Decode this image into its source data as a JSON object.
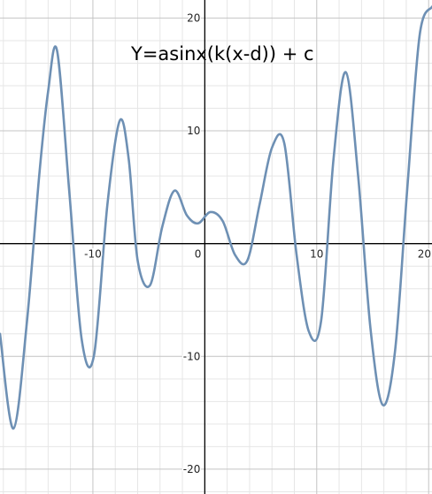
{
  "chart_data": {
    "type": "line",
    "annotation": "Y=asinx(k(x-d)) + c",
    "xlim": [
      -18.3,
      20.3
    ],
    "ylim": [
      -22.2,
      21.6
    ],
    "x_ticks": [
      -10,
      0,
      10,
      20
    ],
    "y_ticks": [
      -20,
      -10,
      0,
      10,
      20
    ],
    "x_tick_labels": [
      "-10",
      "0",
      "10",
      "20"
    ],
    "y_tick_labels": [
      "-20",
      "-10",
      "",
      "10",
      "20"
    ],
    "grid": true,
    "minor_grid_step": 2,
    "major_grid_step": 10,
    "line_color": "#6e90b4",
    "series": [
      {
        "x": [
          -18.3,
          -17.1,
          -15.9,
          -14.8,
          -14.0,
          -13.2,
          -12.1,
          -11.0,
          -9.9,
          -8.7,
          -7.6,
          -6.8,
          -6.0,
          -4.9,
          -3.8,
          -2.7,
          -1.6,
          -0.6,
          0.5,
          1.6,
          2.7,
          3.8,
          4.9,
          6.0,
          7.1,
          8.2,
          9.3,
          10.4,
          11.5,
          12.6,
          13.7,
          14.8,
          15.9,
          17.0,
          18.1,
          19.2,
          20.3
        ],
        "y": [
          -8.0,
          -16.4,
          -7.0,
          6.0,
          13.5,
          17.1,
          4.5,
          -8.5,
          -9.9,
          3.5,
          10.9,
          7.5,
          -1.5,
          -3.7,
          1.5,
          4.7,
          2.5,
          1.8,
          2.8,
          2.0,
          -1.0,
          -1.5,
          3.5,
          8.5,
          8.9,
          -1.0,
          -7.8,
          -6.8,
          7.5,
          15.2,
          6.0,
          -7.5,
          -14.3,
          -9.5,
          5.0,
          18.5,
          21.0
        ]
      }
    ]
  }
}
